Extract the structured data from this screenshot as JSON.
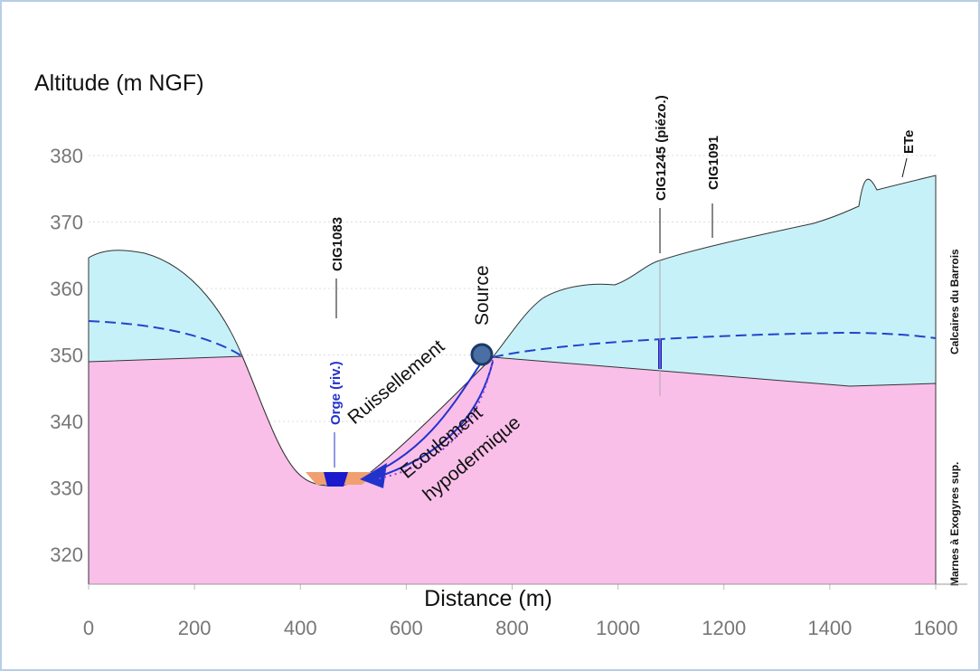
{
  "chart_data": {
    "type": "cross-section",
    "y_label": "Altitude (m NGF)",
    "x_label": "Distance (m)",
    "xlim": [
      0,
      1600
    ],
    "xticks": [
      0,
      200,
      400,
      600,
      800,
      1000,
      1200,
      1400,
      1600
    ],
    "ylim": [
      315.5,
      383
    ],
    "yticks": [
      320,
      330,
      340,
      350,
      360,
      370,
      380
    ],
    "grid": true,
    "annotations": [
      "CIG1083",
      "Orge (riv.)",
      "Ruissellement",
      "Ecoulement",
      "hypodermique",
      "Source",
      "CIG1245 (piézo.)",
      "CIG1091",
      "ETe",
      "Calcaires du Barrois",
      "Marnes à Exogyres sup."
    ]
  }
}
